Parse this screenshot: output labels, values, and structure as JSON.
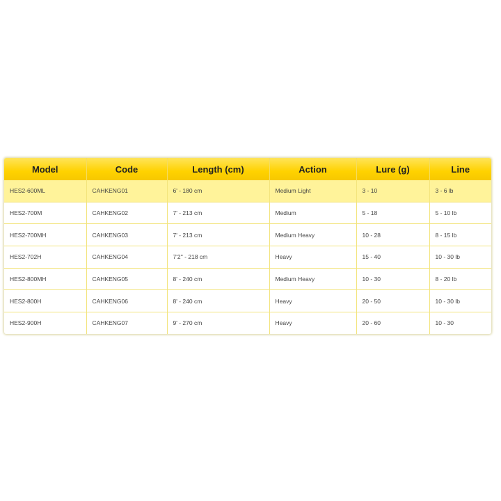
{
  "table": {
    "headers": [
      "Model",
      "Code",
      "Length (cm)",
      "Action",
      "Lure (g)",
      "Line"
    ],
    "rows": [
      [
        "HES2-600ML",
        "CAHKENG01",
        "6' - 180 cm",
        "Medium Light",
        "3 - 10",
        "3 - 6 lb"
      ],
      [
        "HES2-700M",
        "CAHKENG02",
        "7' - 213 cm",
        "Medium",
        "5 - 18",
        "5 - 10 lb"
      ],
      [
        "HES2-700MH",
        "CAHKENG03",
        "7' - 213 cm",
        "Medium Heavy",
        "10 - 28",
        "8 - 15 lb"
      ],
      [
        "HES2-702H",
        "CAHKENG04",
        "7'2'' - 218 cm",
        "Heavy",
        "15 - 40",
        "10 - 30 lb"
      ],
      [
        "HES2-800MH",
        "CAHKENG05",
        "8' - 240 cm",
        "Medium Heavy",
        "10 - 30",
        "8 - 20 lb"
      ],
      [
        "HES2-800H",
        "CAHKENG06",
        "8' - 240 cm",
        "Heavy",
        "20 - 50",
        "10 - 30 lb"
      ],
      [
        "HES2-900H",
        "CAHKENG07",
        "9' - 270 cm",
        "Heavy",
        "20 - 60",
        "10 - 30"
      ]
    ]
  },
  "colors": {
    "header": "#ffd200",
    "highlight_row": "#fff39a",
    "border": "#f3e47c"
  }
}
